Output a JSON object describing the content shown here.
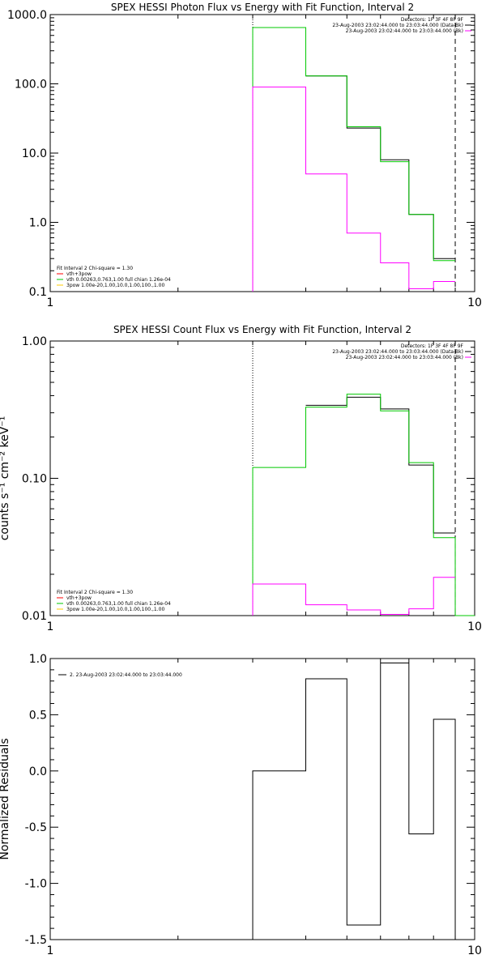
{
  "chart_data": [
    {
      "type": "line",
      "title": "SPEX HESSI Photon Flux vs Energy with Fit Function, Interval 2",
      "xlabel": "",
      "ylabel": "",
      "xscale": "log",
      "yscale": "log",
      "xlim": [
        1,
        10
      ],
      "ylim": [
        0.1,
        1000
      ],
      "x_ticks": [
        "1",
        "10"
      ],
      "y_ticks": [
        "1000.0",
        "100.0",
        "10.0",
        "1.0",
        "0.1"
      ],
      "bin_edges": [
        3,
        4,
        5,
        6,
        7,
        8,
        9
      ],
      "series": [
        {
          "name": "data",
          "color": "#000000",
          "values": [
            null,
            130,
            23,
            8,
            1.3,
            0.3
          ]
        },
        {
          "name": "vth+3pow",
          "color": "#00c800",
          "values": [
            650,
            130,
            24,
            7.5,
            1.3,
            0.28
          ]
        },
        {
          "name": "background",
          "color": "#ff00ff",
          "values": [
            90,
            5,
            0.7,
            0.26,
            0.11,
            0.14
          ]
        }
      ],
      "vlines": [
        {
          "x": 3,
          "style": "dotted",
          "color": "#000000"
        },
        {
          "x": 9,
          "style": "dashed",
          "color": "#000000"
        }
      ],
      "legend_top_right": [
        {
          "label": "Detectors: 1F 3F 4F 8F 9F",
          "color": ""
        },
        {
          "label": "23-Aug-2003 23:02:44.000 to 23:03:44.000 (Data-Bk)",
          "color": "#000000"
        },
        {
          "label": "23-Aug-2003 23:02:44.000 to 23:03:44.000 (Bk)",
          "color": "#ff00ff"
        }
      ],
      "legend_bottom_left": [
        {
          "label": "Fit Interval 2   Chi-square = 1.30",
          "color": ""
        },
        {
          "label": "vth+3pow",
          "color": "#ff0000"
        },
        {
          "label": "vth 0.00263,0.763,1.00  full chian 1.26e-04",
          "color": "#00c800"
        },
        {
          "label": "3pow 1.00e-20,1.00,10.0,1.00,100.,1.00",
          "color": "#ffcc00"
        }
      ]
    },
    {
      "type": "line",
      "title": "SPEX HESSI Count Flux vs Energy with Fit Function, Interval 2",
      "xlabel": "",
      "ylabel": "counts s⁻¹ cm⁻² keV⁻¹",
      "xscale": "log",
      "yscale": "log",
      "xlim": [
        1,
        10
      ],
      "ylim": [
        0.01,
        1.0
      ],
      "x_ticks": [
        "1",
        "10"
      ],
      "y_ticks": [
        "1.00",
        "0.10",
        "0.01"
      ],
      "bin_edges": [
        3,
        4,
        5,
        6,
        7,
        8,
        9,
        10
      ],
      "series": [
        {
          "name": "data",
          "color": "#000000",
          "values": [
            null,
            0.34,
            0.39,
            0.32,
            0.125,
            0.04,
            null
          ]
        },
        {
          "name": "vth+3pow",
          "color": "#00c800",
          "values": [
            0.12,
            0.33,
            0.41,
            0.31,
            0.13,
            0.037,
            0.01
          ]
        },
        {
          "name": "background",
          "color": "#ff00ff",
          "values": [
            0.017,
            0.012,
            0.011,
            0.0102,
            0.0112,
            0.019,
            null
          ]
        }
      ],
      "vlines": [
        {
          "x": 3,
          "style": "dotted",
          "color": "#000000"
        },
        {
          "x": 9,
          "style": "dashed",
          "color": "#000000"
        }
      ],
      "legend_top_right": [
        {
          "label": "Detectors: 1F 3F 4F 8F 9F",
          "color": ""
        },
        {
          "label": "23-Aug-2003 23:02:44.000 to 23:03:44.000 (Data-Bk)",
          "color": "#000000"
        },
        {
          "label": "23-Aug-2003 23:02:44.000 to 23:03:44.000 (Bk)",
          "color": "#ff00ff"
        }
      ],
      "legend_bottom_left": [
        {
          "label": "Fit Interval 2   Chi-square = 1.30",
          "color": ""
        },
        {
          "label": "vth+3pow",
          "color": "#ff0000"
        },
        {
          "label": "vth 0.00263,0.763,1.00  full chian 1.26e-04",
          "color": "#00c800"
        },
        {
          "label": "3pow 1.00e-20,1.00,10.0,1.00,100.,1.00",
          "color": "#ffcc00"
        }
      ]
    },
    {
      "type": "line",
      "title": "",
      "xlabel": "",
      "ylabel": "Normalized Residuals",
      "xscale": "log",
      "yscale": "linear",
      "xlim": [
        1,
        10
      ],
      "ylim": [
        -1.5,
        1.0
      ],
      "x_ticks": [
        "1",
        "10"
      ],
      "y_ticks": [
        "1.0",
        "0.5",
        "0.0",
        "-0.5",
        "-1.0",
        "-1.5"
      ],
      "bin_edges": [
        3,
        4,
        5,
        6,
        7,
        8,
        9
      ],
      "series": [
        {
          "name": "residuals",
          "color": "#000000",
          "values": [
            0.0,
            0.82,
            -1.37,
            0.96,
            -0.56,
            0.46
          ]
        }
      ],
      "vlines": [],
      "legend_top_left": [
        {
          "label": "2. 23-Aug-2003 23:02:44.000 to 23:03:44.000",
          "color": "#000000"
        }
      ]
    }
  ]
}
